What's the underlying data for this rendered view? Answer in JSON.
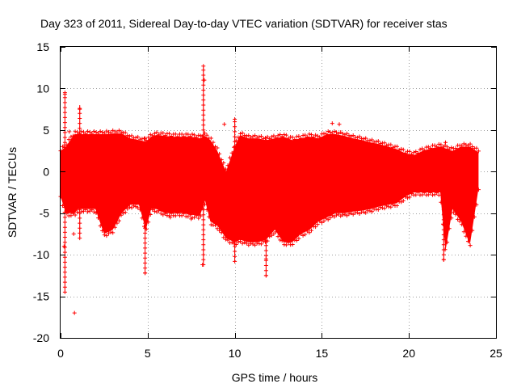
{
  "chart_data": {
    "type": "scatter",
    "title": "Day 323 of 2011, Sidereal Day-to-day VTEC variation (SDTVAR) for receiver stas",
    "xlabel": "GPS time / hours",
    "ylabel": "SDTVAR / TECUs",
    "xlim": [
      0,
      25
    ],
    "ylim": [
      -20,
      15
    ],
    "xticks": [
      0,
      5,
      10,
      15,
      20,
      25
    ],
    "yticks": [
      -20,
      -15,
      -10,
      -5,
      0,
      5,
      10,
      15
    ],
    "grid": true,
    "series": [
      {
        "name": "SDTVAR",
        "color": "#ff0000",
        "marker": "+",
        "envelope": {
          "x": [
            0.0,
            0.3,
            0.8,
            1.0,
            1.5,
            2.0,
            2.5,
            3.0,
            3.5,
            4.0,
            4.5,
            4.9,
            5.2,
            5.5,
            6.0,
            6.5,
            7.0,
            7.5,
            8.0,
            8.3,
            8.6,
            9.0,
            9.5,
            10.0,
            10.3,
            10.8,
            11.3,
            11.8,
            12.3,
            12.8,
            13.3,
            13.8,
            14.3,
            14.8,
            15.3,
            15.8,
            16.3,
            16.8,
            17.3,
            17.8,
            18.3,
            18.8,
            19.3,
            19.8,
            20.3,
            20.8,
            21.3,
            21.8,
            22.1,
            22.5,
            23.0,
            23.5,
            24.0
          ],
          "upper": [
            2.5,
            3.0,
            4.5,
            4.5,
            4.5,
            4.5,
            4.5,
            4.6,
            4.6,
            4.0,
            3.8,
            3.6,
            4.2,
            4.4,
            4.3,
            4.2,
            4.2,
            4.2,
            4.0,
            4.3,
            3.8,
            2.5,
            0.0,
            3.0,
            4.4,
            4.0,
            4.0,
            3.8,
            4.0,
            4.2,
            3.8,
            4.0,
            4.2,
            4.0,
            4.5,
            4.5,
            4.3,
            4.0,
            3.8,
            3.5,
            3.3,
            3.0,
            2.7,
            2.2,
            2.0,
            2.5,
            2.8,
            3.0,
            2.8,
            2.5,
            3.0,
            3.0,
            2.3
          ],
          "lower": [
            -3.0,
            -5.0,
            -5.0,
            -4.5,
            -4.5,
            -4.5,
            -7.5,
            -7.0,
            -5.0,
            -4.0,
            -4.0,
            -7.0,
            -4.5,
            -4.5,
            -5.0,
            -5.0,
            -5.0,
            -5.2,
            -5.3,
            -3.5,
            -6.0,
            -6.5,
            -8.0,
            -8.5,
            -8.2,
            -8.5,
            -8.5,
            -8.2,
            -7.0,
            -8.5,
            -8.5,
            -7.5,
            -7.0,
            -6.0,
            -5.5,
            -5.0,
            -5.0,
            -4.8,
            -4.7,
            -4.5,
            -4.2,
            -4.0,
            -3.8,
            -3.0,
            -2.5,
            -2.5,
            -2.5,
            -2.5,
            -9.5,
            -4.5,
            -6.0,
            -8.8,
            -2.0
          ]
        },
        "outliers": [
          {
            "x": 0.8,
            "y": -17.0
          },
          {
            "x": 0.2,
            "y": -9.0
          },
          {
            "x": 0.25,
            "y": 9.3
          },
          {
            "x": 0.5,
            "y": 4.8
          },
          {
            "x": 1.1,
            "y": 7.5
          },
          {
            "x": 0.75,
            "y": -7.5
          },
          {
            "x": 4.85,
            "y": -12.2
          },
          {
            "x": 8.2,
            "y": 12.7
          },
          {
            "x": 8.25,
            "y": 11.0
          },
          {
            "x": 8.15,
            "y": -11.2
          },
          {
            "x": 9.4,
            "y": 5.7
          },
          {
            "x": 10.0,
            "y": 6.3
          },
          {
            "x": 11.8,
            "y": -12.5
          },
          {
            "x": 11.8,
            "y": -10.5
          },
          {
            "x": 15.6,
            "y": 5.8
          },
          {
            "x": 16.0,
            "y": 5.7
          },
          {
            "x": 22.0,
            "y": -10.6
          },
          {
            "x": 22.1,
            "y": 3.5
          },
          {
            "x": 6.3,
            "y": -5.5
          },
          {
            "x": 7.5,
            "y": -5.7
          }
        ],
        "spikes": [
          {
            "x": 0.25,
            "y1": -14.5,
            "y2": 9.5
          },
          {
            "x": 1.1,
            "y1": -8.0,
            "y2": 8.0
          },
          {
            "x": 4.85,
            "y1": -12.2,
            "y2": 4.0
          },
          {
            "x": 8.2,
            "y1": -11.2,
            "y2": 12.7
          },
          {
            "x": 10.0,
            "y1": -10.8,
            "y2": 6.3
          },
          {
            "x": 11.8,
            "y1": -12.5,
            "y2": 4.0
          },
          {
            "x": 22.0,
            "y1": -10.6,
            "y2": 3.0
          }
        ]
      }
    ]
  }
}
